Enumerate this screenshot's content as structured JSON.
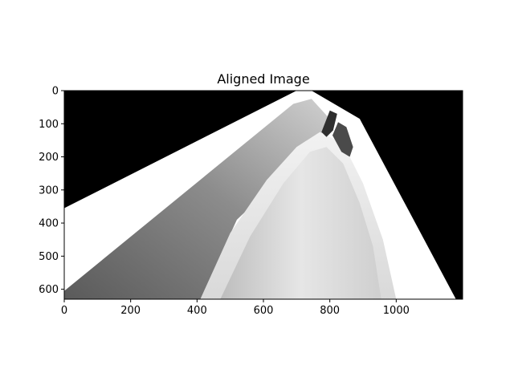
{
  "chart_data": {
    "type": "image",
    "title": "Aligned Image",
    "xlabel": "",
    "ylabel": "",
    "xlim": [
      0,
      1200
    ],
    "ylim": [
      630,
      0
    ],
    "x_ticks": [
      0,
      200,
      400,
      600,
      800,
      1000
    ],
    "y_ticks": [
      0,
      100,
      200,
      300,
      400,
      500,
      600
    ],
    "grid": false,
    "image": {
      "background": "#000000",
      "warped_region": [
        [
          0,
          355
        ],
        [
          700,
          0
        ],
        [
          745,
          0
        ],
        [
          890,
          85
        ],
        [
          1180,
          630
        ],
        [
          0,
          630
        ]
      ],
      "left_slab": [
        [
          0,
          630
        ],
        [
          0,
          605
        ],
        [
          690,
          40
        ],
        [
          745,
          25
        ],
        [
          795,
          80
        ],
        [
          770,
          150
        ],
        [
          520,
          390
        ],
        [
          410,
          630
        ]
      ],
      "arch_outer": [
        [
          410,
          630
        ],
        [
          500,
          430
        ],
        [
          610,
          270
        ],
        [
          700,
          170
        ],
        [
          770,
          125
        ],
        [
          840,
          160
        ],
        [
          900,
          280
        ],
        [
          960,
          450
        ],
        [
          1000,
          630
        ]
      ],
      "arch_inner": [
        [
          470,
          630
        ],
        [
          560,
          440
        ],
        [
          660,
          280
        ],
        [
          740,
          185
        ],
        [
          790,
          170
        ],
        [
          840,
          220
        ],
        [
          890,
          340
        ],
        [
          930,
          470
        ],
        [
          955,
          630
        ]
      ],
      "dark_fins": [
        [
          [
            775,
            125
          ],
          [
            800,
            60
          ],
          [
            822,
            70
          ],
          [
            810,
            120
          ],
          [
            790,
            140
          ]
        ],
        [
          [
            808,
            135
          ],
          [
            825,
            95
          ],
          [
            850,
            110
          ],
          [
            870,
            170
          ],
          [
            860,
            200
          ],
          [
            835,
            185
          ]
        ]
      ]
    }
  }
}
